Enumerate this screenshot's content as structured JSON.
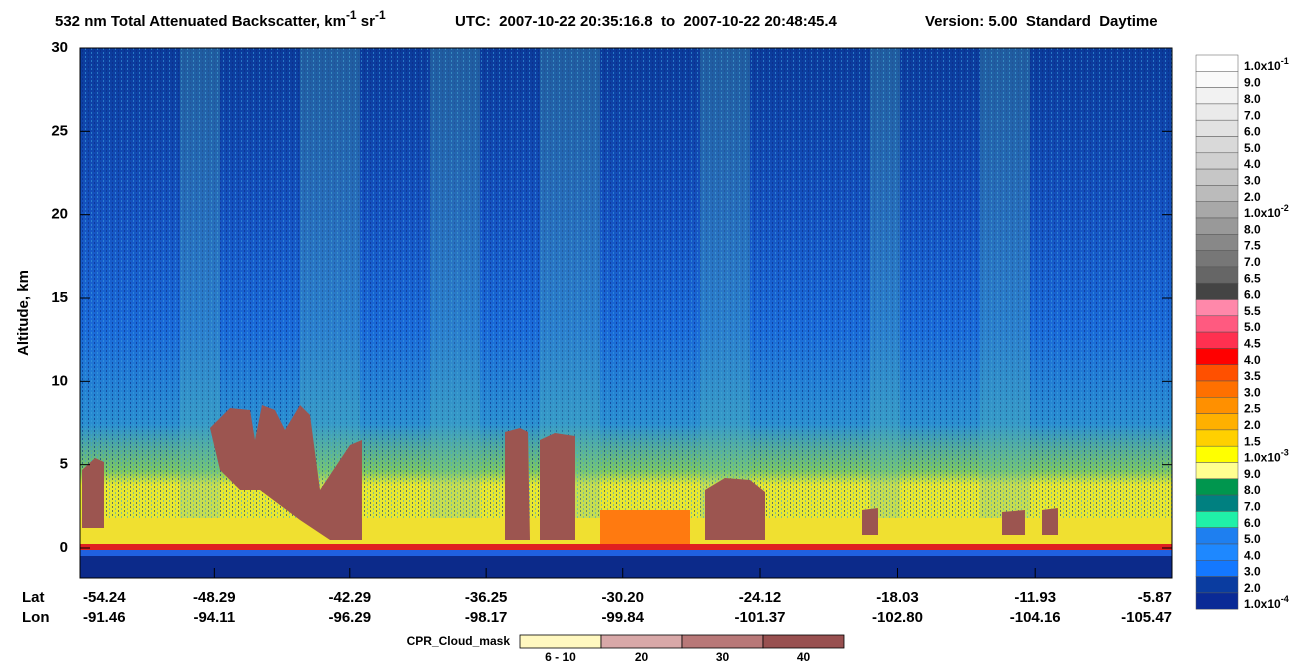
{
  "chart_data": {
    "type": "heatmap",
    "title": {
      "text": "532 nm Total Attenuated Backscatter, km",
      "unit_exp": "-1",
      "unit2": " sr",
      "unit2_exp": "-1"
    },
    "utc": "UTC:  2007-10-22 20:35:16.8  to  2007-10-22 20:48:45.4",
    "version": "Version: 5.00  Standard  Daytime",
    "ylabel": "Altitude, km",
    "ylim": [
      -1.8,
      30
    ],
    "yticks": [
      0,
      5,
      10,
      15,
      20,
      25,
      30
    ],
    "lat_label": "Lat",
    "lon_label": "Lon",
    "xlim": [
      -54.24,
      -5.87
    ],
    "xticks": [
      -54.24,
      -48.29,
      -42.29,
      -36.25,
      {
        "value": -30.2,
        "label": "-30.20"
      },
      -24.12,
      -18.03,
      -11.93,
      -5.87
    ],
    "lon": [
      -91.46,
      -94.11,
      -96.29,
      -98.17,
      -99.84,
      -101.37,
      {
        "value": -102.8,
        "label": "-102.80"
      },
      -104.16,
      -105.47
    ],
    "colorbar": {
      "labels": [
        {
          "text": "1.0x10",
          "sup": "-1"
        },
        "9.0",
        "8.0",
        "7.0",
        "6.0",
        "5.0",
        "4.0",
        "3.0",
        "2.0",
        {
          "text": "1.0x10",
          "sup": "-2"
        },
        "8.0",
        "7.5",
        "7.0",
        "6.5",
        "6.0",
        "5.5",
        "5.0",
        "4.5",
        "4.0",
        "3.5",
        "3.0",
        "2.5",
        "2.0",
        "1.5",
        {
          "text": "1.0x10",
          "sup": "-3"
        },
        "9.0",
        "8.0",
        "7.0",
        "6.0",
        "5.0",
        "4.0",
        "3.0",
        "2.0",
        {
          "text": "1.0x10",
          "sup": "-4"
        }
      ],
      "colors": [
        "#ffffff",
        "#fafafa",
        "#f2f2f2",
        "#eaeaea",
        "#e2e2e2",
        "#d9d9d9",
        "#d0d0d0",
        "#c6c6c6",
        "#bbbbbb",
        "#a8a8a8",
        "#999999",
        "#888888",
        "#777777",
        "#666666",
        "#444444",
        "#ff88aa",
        "#ff5a80",
        "#ff3050",
        "#ff0000",
        "#ff5000",
        "#ff7000",
        "#ff9000",
        "#ffb000",
        "#ffd000",
        "#ffff00",
        "#ffff90",
        "#00964e",
        "#008080",
        "#20f0a8",
        "#1e7ff0",
        "#1e88ff",
        "#1478ff",
        "#0a3ca0",
        "#0a2a96"
      ]
    },
    "cpr": {
      "label": "CPR_Cloud_mask",
      "labels": [
        "6 - 10",
        "20",
        "30",
        "40"
      ],
      "colors": [
        "#fff8c0",
        "#d8a8a8",
        "#b87878",
        "#985050"
      ]
    }
  }
}
